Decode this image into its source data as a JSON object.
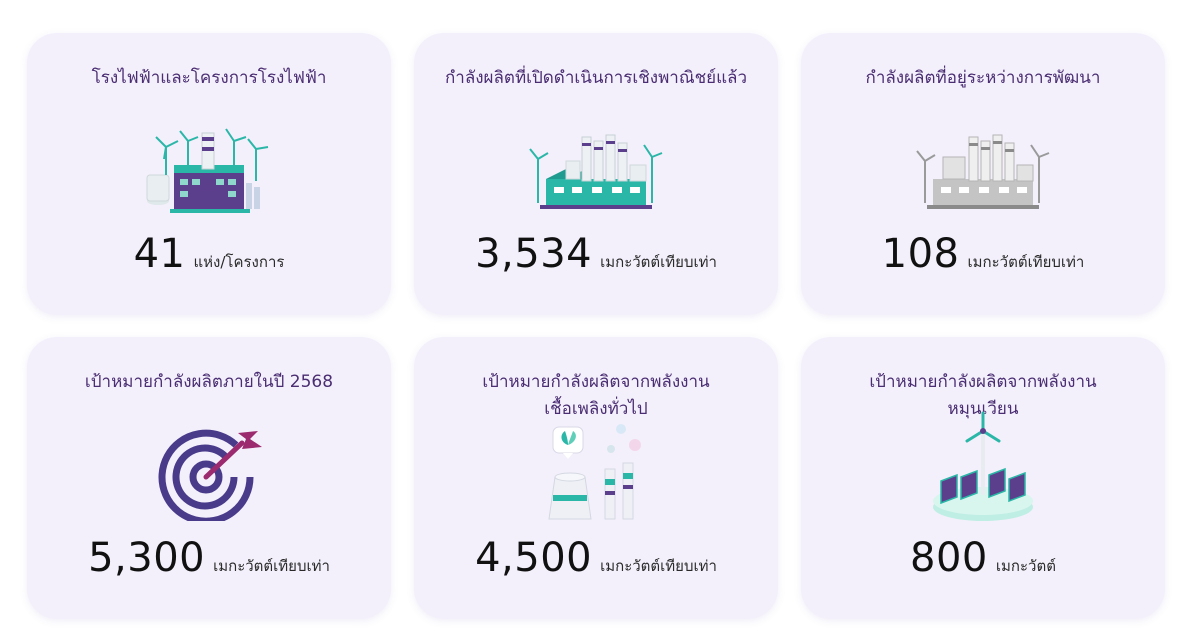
{
  "cards": [
    {
      "title_lines": [
        "โรงไฟฟ้าและโครงการโรงไฟฟ้า"
      ],
      "value": "41",
      "unit": "แห่ง/โครงการ",
      "icon": "power-plant-wind-icon"
    },
    {
      "title_lines": [
        "กำลังผลิตที่เปิดดำเนินการเชิงพาณิชย์แล้ว"
      ],
      "value": "3,534",
      "unit": "เมกะวัตต์เทียบเท่า",
      "icon": "industrial-plant-wind-icon"
    },
    {
      "title_lines": [
        "กำลังผลิตที่อยู่ระหว่างการพัฒนา"
      ],
      "value": "108",
      "unit": "เมกะวัตต์เทียบเท่า",
      "icon": "plant-under-development-icon"
    },
    {
      "title_lines": [
        "เป้าหมายกำลังผลิตภายในปี 2568"
      ],
      "value": "5,300",
      "unit": "เมกะวัตต์เทียบเท่า",
      "icon": "target-dart-icon"
    },
    {
      "title_lines": [
        "เป้าหมายกำลังผลิตจากพลังงาน",
        "เชื้อเพลิงทั่วไป"
      ],
      "value": "4,500",
      "unit": "เมกะวัตต์เทียบเท่า",
      "icon": "cooling-tower-chimney-icon"
    },
    {
      "title_lines": [
        "เป้าหมายกำลังผลิตจากพลังงาน",
        "หมุนเวียน"
      ],
      "value": "800",
      "unit": "เมกะวัตต์",
      "icon": "wind-solar-island-icon"
    }
  ],
  "colors": {
    "card_bg": "#f3f0fb",
    "title": "#4a2d72",
    "teal": "#2bb7a8",
    "purple": "#5b3f8c",
    "target": "#4a3a8a",
    "dart": "#9b2b6e"
  }
}
